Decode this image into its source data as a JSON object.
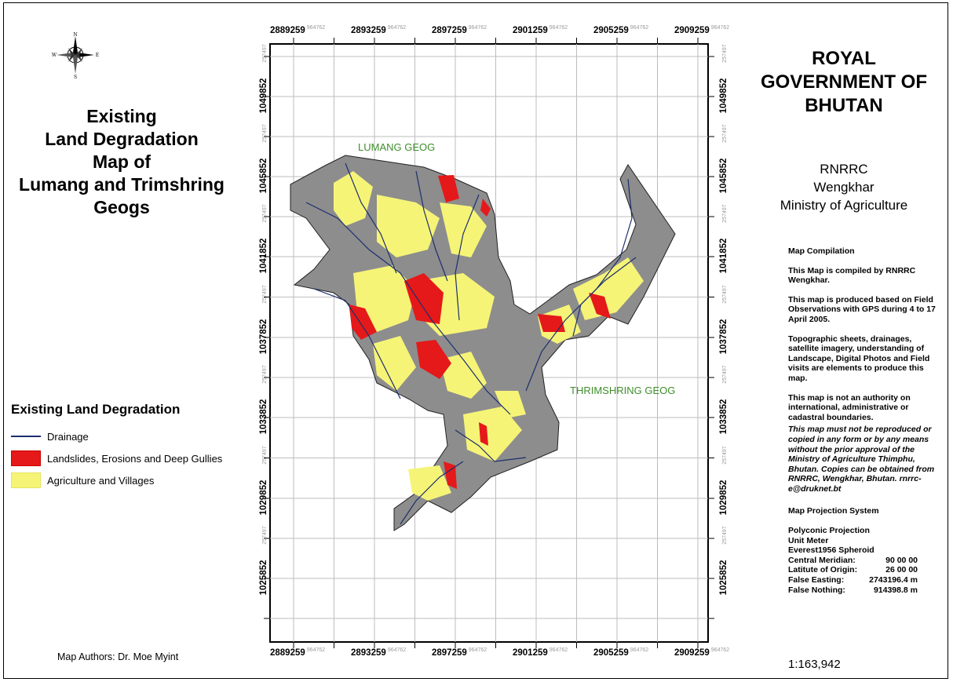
{
  "title": {
    "lines": [
      "Existing",
      "Land Degradation",
      "Map of",
      "Lumang and Trimshring",
      "Geogs"
    ]
  },
  "compass": {
    "n": "N",
    "s": "S",
    "e": "E",
    "w": "W"
  },
  "legend": {
    "title": "Existing Land Degradation",
    "items": [
      {
        "label": "Drainage",
        "color": "#1b2f6e",
        "kind": "line"
      },
      {
        "label": "Landslides, Erosions and Deep Gullies",
        "color": "#e51919",
        "kind": "fill"
      },
      {
        "label": "Agriculture and Villages",
        "color": "#f6f477",
        "kind": "fill"
      }
    ]
  },
  "authors": "Map Authors: Dr. Moe Myint",
  "government": {
    "lines": [
      "ROYAL",
      "GOVERNMENT OF",
      "BHUTAN"
    ]
  },
  "organization": {
    "lines": [
      "RNRRC",
      "Wengkhar",
      "Ministry of Agriculture"
    ]
  },
  "notes": {
    "heading": "Map Compilation",
    "paragraphs": [
      "This Map is compiled by RNRRC Wengkhar.",
      "This map is produced based on Field Observations with GPS during 4 to 17 April 2005.",
      "Topographic sheets, drainages, satellite imagery, understanding of Landscape, Digital Photos and Field visits are elements to produce this map.",
      "This map is not an authority on international, administrative or cadastral boundaries."
    ],
    "disclaimer": "This map must not be reproduced or copied in any form or by any means without the prior approval of the Ministry of Agriculture Thimphu, Bhutan. Copies can be obtained from RNRRC, Wengkhar, Bhutan. rnrrc-e@druknet.bt",
    "projection_heading": "Map Projection System",
    "projection_lines": [
      "Polyconic Projection",
      "Unit Meter",
      "Everest1956 Spheroid"
    ],
    "projection_params": [
      {
        "k": "Central Meridian:",
        "v": "90 00 00"
      },
      {
        "k": "Latitute of Origin:",
        "v": "26 00 00"
      },
      {
        "k": "False Easting:",
        "v": "2743196.4 m"
      },
      {
        "k": "False Nothing:",
        "v": "914398.8 m"
      }
    ]
  },
  "scale": "1:163,942",
  "map": {
    "x_labels": [
      "2889259",
      "2893259",
      "2897259",
      "2901259",
      "2905259",
      "2909259"
    ],
    "x_sub": "964762",
    "y_labels": [
      "1049852",
      "1045852",
      "1041852",
      "1037852",
      "1033852",
      "1029852",
      "1025852"
    ],
    "y_sub": "257497",
    "geog_labels": [
      "LUMANG GEOG",
      "THRIMSHRING GEOG"
    ],
    "colors": {
      "drainage": "#1b2f6e",
      "landslide": "#e51919",
      "agriculture": "#f6f477",
      "grid": "#bdbdbd",
      "geog_text": "#3e8e2a"
    }
  }
}
